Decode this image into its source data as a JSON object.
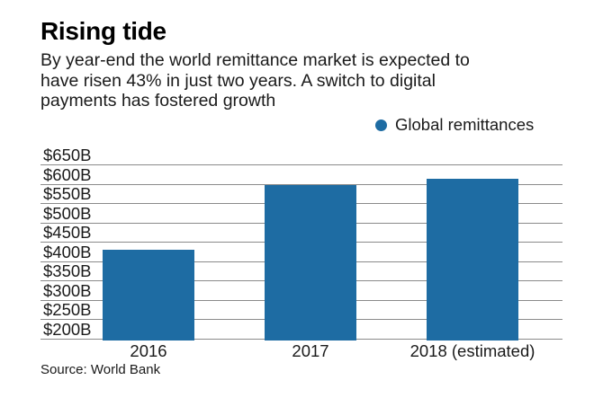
{
  "header": {
    "title": "Rising tide",
    "subtitle_lines": [
      "By year-end the world remittance market is expected to",
      "have risen 43% in just two years. A switch to digital",
      "payments has fostered growth"
    ]
  },
  "legend": {
    "series_label": "Global remittances"
  },
  "chart_data": {
    "type": "bar",
    "title": "Rising tide",
    "subtitle": "By year-end the world remittance market is expected to have risen 43% in just two years. A switch to digital payments has fostered growth",
    "categories": [
      "2016",
      "2017",
      "2018 (estimated)"
    ],
    "series": [
      {
        "name": "Global remittances",
        "values": [
          429,
          596,
          613
        ]
      }
    ],
    "ylim": [
      200,
      650
    ],
    "ytick_interval": 50,
    "ytick_labels": [
      "$650B",
      "$600B",
      "$550B",
      "$500B",
      "$450B",
      "$400B",
      "$350B",
      "$300B",
      "$250B",
      "$200B"
    ],
    "grid": true,
    "legend_position": "top-right",
    "source": "Source: World Bank"
  },
  "footer": {
    "source": "Source: World Bank"
  },
  "colors": {
    "bar": "#1E6CA3",
    "gridline": "#8A8A8A",
    "text": "#1A1A1A"
  }
}
